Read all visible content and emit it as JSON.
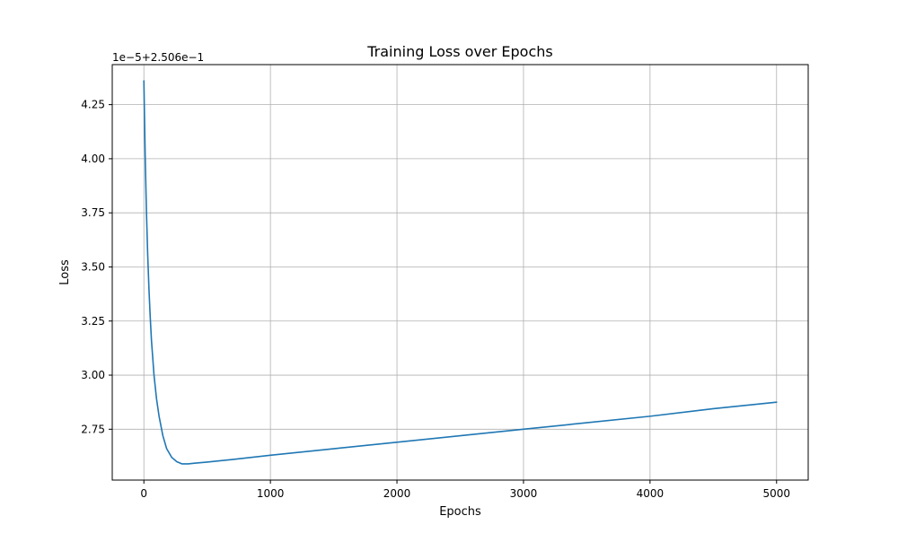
{
  "chart_data": {
    "type": "line",
    "title": "Training Loss over Epochs",
    "xlabel": "Epochs",
    "ylabel": "Loss",
    "y_offset_text": "1e−5+2.506e−1",
    "xlim": [
      -250,
      5250
    ],
    "ylim": [
      2.515,
      4.435
    ],
    "x_ticks": [
      0,
      1000,
      2000,
      3000,
      4000,
      5000
    ],
    "x_tick_labels": [
      "0",
      "1000",
      "2000",
      "3000",
      "4000",
      "5000"
    ],
    "y_ticks": [
      2.75,
      3.0,
      3.25,
      3.5,
      3.75,
      4.0,
      4.25
    ],
    "y_tick_labels": [
      "2.75",
      "3.00",
      "3.25",
      "3.50",
      "3.75",
      "4.00",
      "4.25"
    ],
    "grid": true,
    "line_color": "#1f77b4",
    "series": [
      {
        "x": [
          0,
          10,
          20,
          30,
          40,
          50,
          60,
          80,
          100,
          120,
          150,
          180,
          220,
          260,
          300,
          350,
          400,
          500,
          700,
          1000,
          1500,
          2000,
          2500,
          3000,
          3500,
          4000,
          4500,
          5000
        ],
        "values": [
          4.36,
          4.02,
          3.76,
          3.56,
          3.4,
          3.27,
          3.16,
          3.0,
          2.89,
          2.81,
          2.72,
          2.66,
          2.62,
          2.6,
          2.59,
          2.59,
          2.593,
          2.598,
          2.61,
          2.63,
          2.66,
          2.69,
          2.72,
          2.75,
          2.78,
          2.81,
          2.845,
          2.875
        ]
      }
    ]
  }
}
